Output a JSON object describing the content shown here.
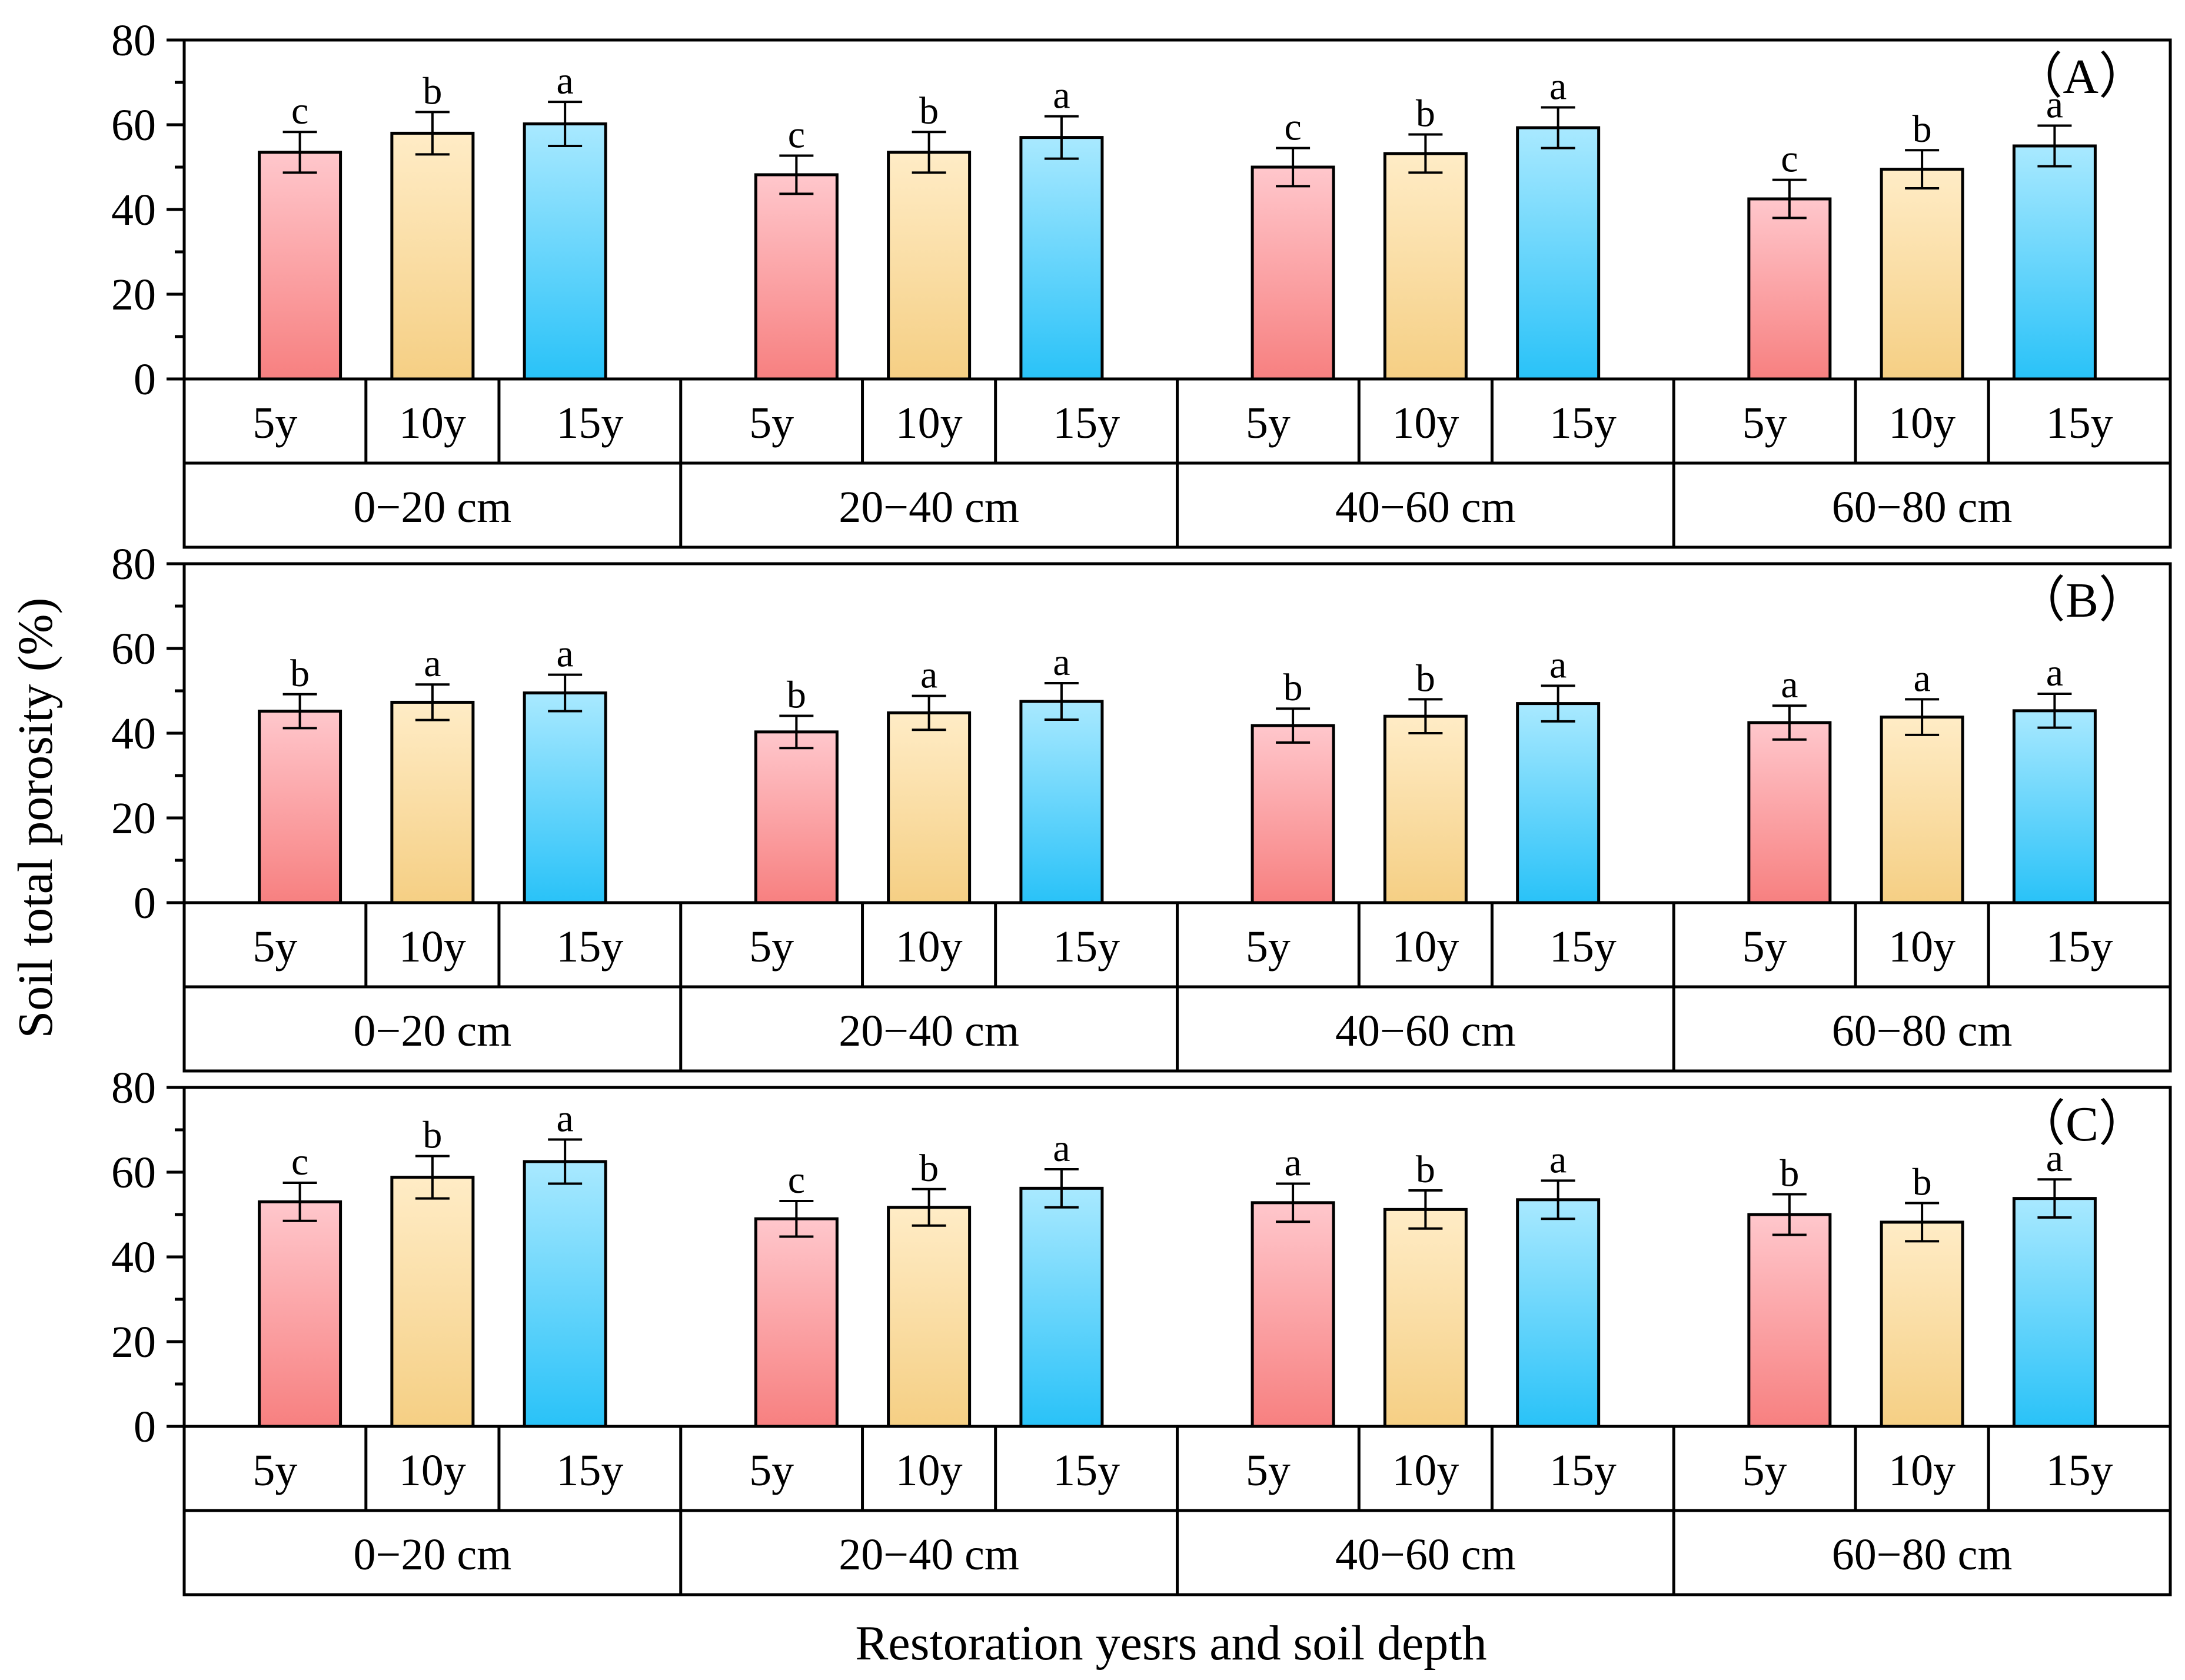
{
  "y_axis_label": "Soil total porosity (%)",
  "x_axis_label": "Restoration yesrs and soil depth",
  "colors": {
    "5y": {
      "top": "#ffc7cc",
      "bottom": "#f78080"
    },
    "10y": {
      "top": "#ffecc6",
      "bottom": "#f5cf84"
    },
    "15y": {
      "top": "#a9e9ff",
      "bottom": "#29c2f8"
    },
    "outline": "#000000"
  },
  "chart_data": [
    {
      "type": "bar",
      "panel_label": "（A）",
      "ylim": [
        0,
        80
      ],
      "yticks": [
        "0",
        "20",
        "40",
        "60",
        "80"
      ],
      "depths": [
        "0−20 cm",
        "20−40 cm",
        "40−60 cm",
        "60−80 cm"
      ],
      "years": [
        "5y",
        "10y",
        "15y"
      ],
      "values": [
        [
          53.5,
          58,
          60.2
        ],
        [
          48.2,
          53.5,
          57
        ],
        [
          50,
          53.2,
          59.3
        ],
        [
          42.5,
          49.5,
          55
        ]
      ],
      "errors": [
        [
          4.8,
          5,
          5.2
        ],
        [
          4.5,
          4.8,
          5
        ],
        [
          4.5,
          4.5,
          4.8
        ],
        [
          4.5,
          4.5,
          4.8
        ]
      ],
      "letters": [
        [
          "c",
          "b",
          "a"
        ],
        [
          "c",
          "b",
          "a"
        ],
        [
          "c",
          "b",
          "a"
        ],
        [
          "c",
          "b",
          "a"
        ]
      ]
    },
    {
      "type": "bar",
      "panel_label": "（B）",
      "ylim": [
        0,
        80
      ],
      "yticks": [
        "0",
        "20",
        "40",
        "60",
        "80"
      ],
      "depths": [
        "0−20 cm",
        "20−40 cm",
        "40−60 cm",
        "60−80 cm"
      ],
      "years": [
        "5y",
        "10y",
        "15y"
      ],
      "values": [
        [
          45.2,
          47.3,
          49.5
        ],
        [
          40.3,
          44.8,
          47.5
        ],
        [
          41.8,
          44,
          47
        ],
        [
          42.5,
          43.8,
          45.3
        ]
      ],
      "errors": [
        [
          4,
          4.2,
          4.3
        ],
        [
          3.8,
          4,
          4.3
        ],
        [
          4,
          4,
          4.2
        ],
        [
          4,
          4.2,
          4
        ]
      ],
      "letters": [
        [
          "b",
          "a",
          "a"
        ],
        [
          "b",
          "a",
          "a"
        ],
        [
          "b",
          "b",
          "a"
        ],
        [
          "a",
          "a",
          "a"
        ]
      ]
    },
    {
      "type": "bar",
      "panel_label": "（C）",
      "ylim": [
        0,
        80
      ],
      "yticks": [
        "0",
        "20",
        "40",
        "60",
        "80"
      ],
      "depths": [
        "0−20 cm",
        "20−40 cm",
        "40−60 cm",
        "60−80 cm"
      ],
      "years": [
        "5y",
        "10y",
        "15y"
      ],
      "values": [
        [
          53,
          58.8,
          62.5
        ],
        [
          49,
          51.7,
          56.2
        ],
        [
          52.8,
          51.2,
          53.5
        ],
        [
          50,
          48.2,
          53.8
        ]
      ],
      "errors": [
        [
          4.5,
          5,
          5.2
        ],
        [
          4.2,
          4.3,
          4.5
        ],
        [
          4.5,
          4.5,
          4.5
        ],
        [
          4.8,
          4.5,
          4.5
        ]
      ],
      "letters": [
        [
          "c",
          "b",
          "a"
        ],
        [
          "c",
          "b",
          "a"
        ],
        [
          "a",
          "b",
          "a"
        ],
        [
          "b",
          "b",
          "a"
        ]
      ]
    }
  ]
}
